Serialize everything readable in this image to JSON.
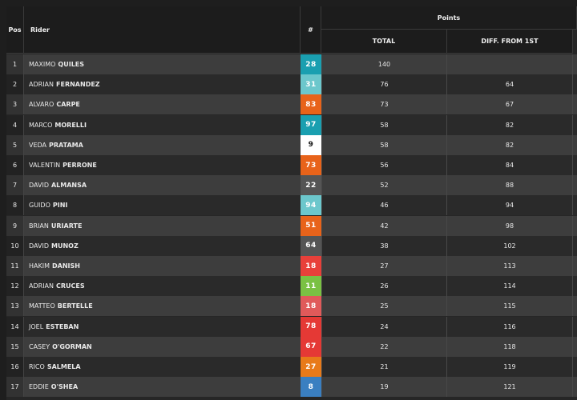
{
  "header": {
    "pos": "Pos",
    "rider": "Rider",
    "number": "#",
    "points": "Points",
    "total": "TOTAL",
    "diff": "DIFF. FROM 1ST"
  },
  "rows": [
    {
      "pos": 1,
      "first": "MAXIMO",
      "last": "QUILES",
      "number": 28,
      "color": "#1a9fb0",
      "total": 140
    },
    {
      "pos": 2,
      "first": "ADRIAN",
      "last": "FERNANDEZ",
      "number": 31,
      "color": "#6cc7cc",
      "total": 76,
      "diff": 64
    },
    {
      "pos": 3,
      "first": "ALVARO",
      "last": "CARPE",
      "number": 83,
      "color": "#e8631a",
      "total": 73,
      "diff": 67
    },
    {
      "pos": 4,
      "first": "MARCO",
      "last": "MORELLI",
      "number": 97,
      "color": "#1a9fb0",
      "total": 58,
      "diff": 82
    },
    {
      "pos": 5,
      "first": "VEDA",
      "last": "PRATAMA",
      "number": 9,
      "color": "#ffffff",
      "total": 58,
      "diff": 82
    },
    {
      "pos": 6,
      "first": "VALENTIN",
      "last": "PERRONE",
      "number": 73,
      "color": "#e8631a",
      "total": 56,
      "diff": 84
    },
    {
      "pos": 7,
      "first": "DAVID",
      "last": "ALMANSA",
      "number": 22,
      "color": "#555555",
      "total": 52,
      "diff": 88
    },
    {
      "pos": 8,
      "first": "GUIDO",
      "last": "PINI",
      "number": 94,
      "color": "#6cc7cc",
      "total": 46,
      "diff": 94
    },
    {
      "pos": 9,
      "first": "BRIAN",
      "last": "URIARTE",
      "number": 51,
      "color": "#e8631a",
      "total": 42,
      "diff": 98
    },
    {
      "pos": 10,
      "first": "DAVID",
      "last": "MUNOZ",
      "number": 64,
      "color": "#555555",
      "total": 38,
      "diff": 102
    },
    {
      "pos": 11,
      "first": "HAKIM",
      "last": "DANISH",
      "number": 18,
      "color": "#e8403a",
      "total": 27,
      "diff": 113
    },
    {
      "pos": 12,
      "first": "ADRIAN",
      "last": "CRUCES",
      "number": 11,
      "color": "#7ac143",
      "total": 26,
      "diff": 114
    },
    {
      "pos": 13,
      "first": "MATTEO",
      "last": "BERTELLE",
      "number": 18,
      "color": "#e05a5a",
      "total": 25,
      "diff": 115
    },
    {
      "pos": 14,
      "first": "JOEL",
      "last": "ESTEBAN",
      "number": 78,
      "color": "#e53935",
      "total": 24,
      "diff": 116
    },
    {
      "pos": 15,
      "first": "CASEY",
      "last": "O'GORMAN",
      "number": 67,
      "color": "#e53935",
      "total": 22,
      "diff": 118
    },
    {
      "pos": 16,
      "first": "RICO",
      "last": "SALMELA",
      "number": 27,
      "color": "#e87a1a",
      "total": 21,
      "diff": 119
    },
    {
      "pos": 17,
      "first": "EDDIE",
      "last": "O'SHEA",
      "number": 8,
      "color": "#3a7fc1",
      "total": 19,
      "diff": 121
    }
  ]
}
